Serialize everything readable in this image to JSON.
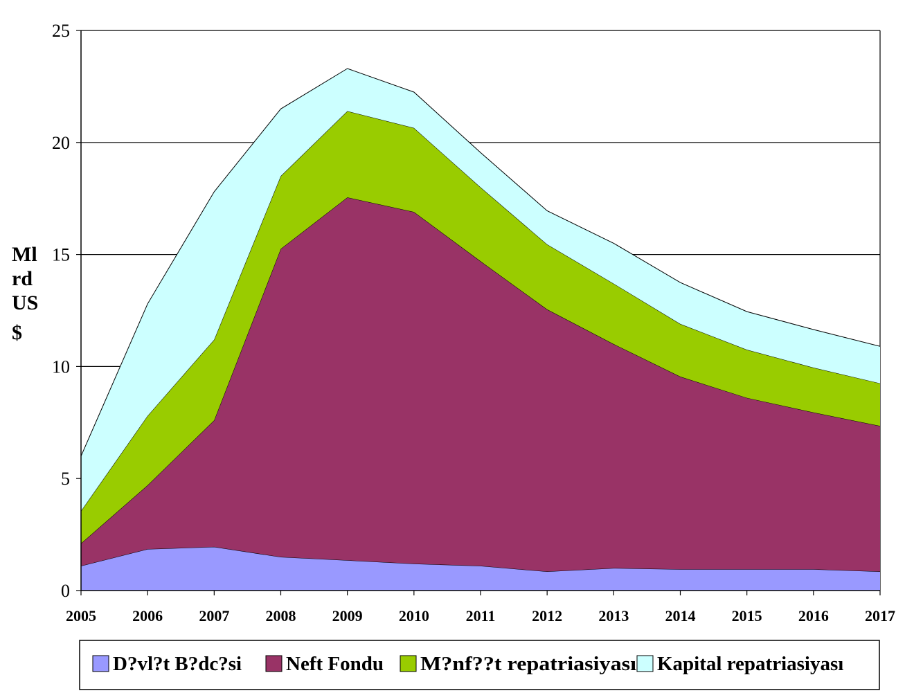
{
  "chart_data": {
    "type": "area",
    "stacked": true,
    "x": [
      "2005",
      "2006",
      "2007",
      "2008",
      "2009",
      "2010",
      "2011",
      "2012",
      "2013",
      "2014",
      "2015",
      "2016",
      "2017"
    ],
    "ylim": [
      0,
      25
    ],
    "yticks": [
      0,
      5,
      10,
      15,
      20,
      25
    ],
    "ylabel_lines": [
      "Ml",
      "rd",
      "US",
      "$"
    ],
    "grid": true,
    "legend_position": "bottom",
    "series": [
      {
        "name": "D?vl?t B?dc?si",
        "color": "#9999ff",
        "values": [
          1.1,
          1.85,
          1.95,
          1.5,
          1.35,
          1.2,
          1.1,
          0.85,
          1.0,
          0.95,
          0.95,
          0.95,
          0.85
        ]
      },
      {
        "name": "Neft Fondu",
        "color": "#993366",
        "values": [
          1.0,
          2.85,
          5.65,
          13.75,
          16.2,
          15.7,
          13.6,
          11.7,
          10.0,
          8.6,
          7.65,
          7.0,
          6.5
        ]
      },
      {
        "name": "M?nf??t repatriasiyası",
        "color": "#99cc00",
        "values": [
          1.45,
          3.1,
          3.6,
          3.25,
          3.85,
          3.75,
          3.3,
          2.9,
          2.7,
          2.35,
          2.15,
          2.0,
          1.9
        ]
      },
      {
        "name": "Kapital repatriasiyası",
        "color": "#ccffff",
        "values": [
          2.45,
          5.0,
          6.6,
          3.0,
          1.9,
          1.6,
          1.55,
          1.5,
          1.8,
          1.85,
          1.7,
          1.7,
          1.65
        ]
      }
    ]
  }
}
